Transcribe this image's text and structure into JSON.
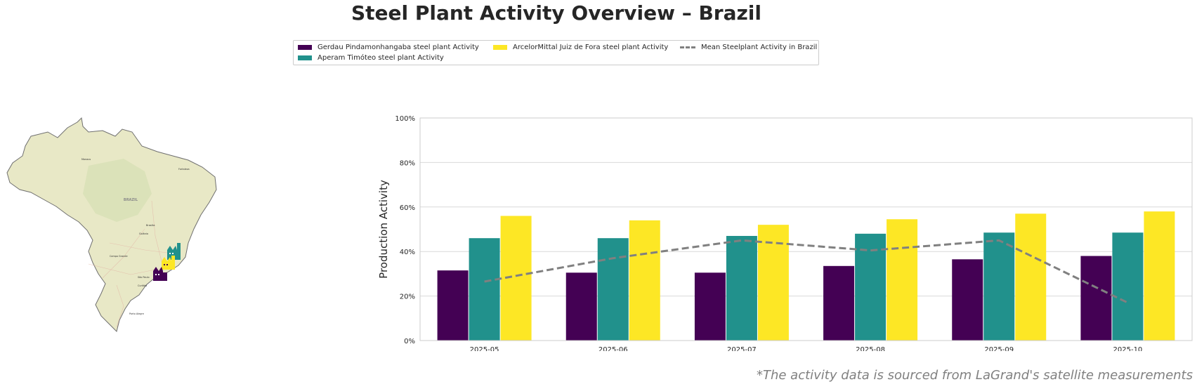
{
  "title": "Steel Plant Activity Overview – Brazil",
  "footnote": "*The activity data is sourced from LaGrand's satellite measurements",
  "map": {
    "country_label": "BRAZIL",
    "city_labels": [
      "Manaus",
      "Fortaleza",
      "Brasília",
      "Goiânia",
      "Campo Grande",
      "São Paulo",
      "Curitiba",
      "Porto Alegre"
    ]
  },
  "chart_data": {
    "type": "bar",
    "categories": [
      "2025-05",
      "2025-06",
      "2025-07",
      "2025-08",
      "2025-09",
      "2025-10"
    ],
    "series": [
      {
        "name": "Gerdau Pindamonhangaba steel plant Activity",
        "color": "#440154",
        "values": [
          31.5,
          30.5,
          30.5,
          33.5,
          36.5,
          38
        ]
      },
      {
        "name": "Aperam Timóteo steel plant Activity",
        "color": "#21918c",
        "values": [
          46,
          46,
          47,
          48,
          48.5,
          48.5
        ]
      },
      {
        "name": "ArcelorMittal Juiz de Fora steel plant Activity",
        "color": "#fde725",
        "values": [
          56,
          54,
          52,
          54.5,
          57,
          58
        ]
      }
    ],
    "line": {
      "name": "Mean Steelplant Activity in Brazil",
      "color": "#808080",
      "values": [
        26.5,
        37,
        45,
        40.5,
        45,
        17
      ]
    },
    "ylabel": "Production Activity",
    "ylim": [
      0,
      100
    ],
    "yticks": [
      0,
      20,
      40,
      60,
      80,
      100
    ],
    "ytick_labels": [
      "0%",
      "20%",
      "40%",
      "60%",
      "80%",
      "100%"
    ],
    "grid": "horizontal",
    "legend_position": "top-center"
  }
}
